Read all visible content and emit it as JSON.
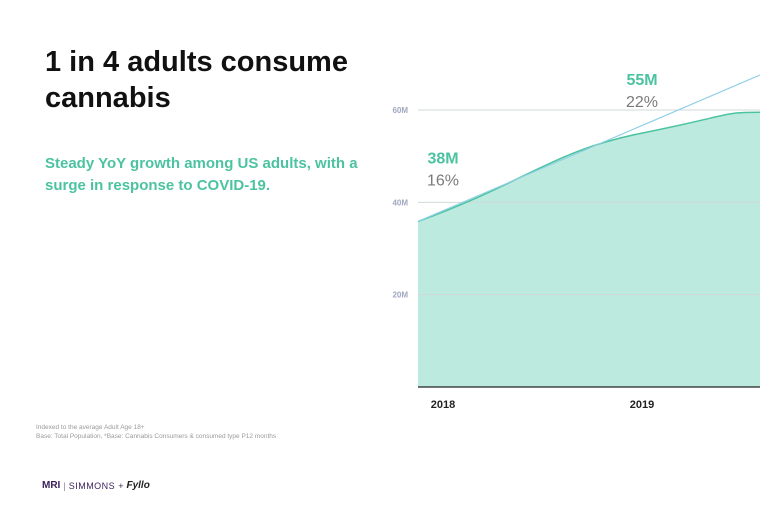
{
  "title": "1 in 4 adults consume cannabis",
  "subtitle": "Steady YoY growth among US adults, with a surge in response to COVID-19.",
  "footnotes": [
    "Indexed to the average Adult Age 18+",
    "Base: Total Population, *Base: Cannabis Consumers & consumed type P12 months"
  ],
  "logo": {
    "mri": "MRI",
    "sep": "|",
    "simmons": "SIMMONS",
    "plus": "+",
    "fyllo": "Fyllo"
  },
  "colors": {
    "area_fill": "#bdeade",
    "area_line": "#4cc3a0",
    "trend_line": "#8ecfe6",
    "grid": "#d0d8d8",
    "value_label": "#4cc3a0",
    "pct_label": "#7a7a7a",
    "tick_label": "#a0a8c0"
  },
  "chart_data": {
    "type": "area",
    "x": [
      "2018",
      "2019"
    ],
    "series": [
      {
        "values": [
          38,
          55
        ]
      }
    ],
    "data_labels": [
      {
        "value": "38M",
        "pct": "16%"
      },
      {
        "value": "55M",
        "pct": "22%"
      }
    ],
    "yticks": [
      "20M",
      "40M",
      "60M"
    ],
    "ytick_values": [
      20,
      40,
      60
    ],
    "ylim": [
      0,
      60
    ],
    "grid": true
  }
}
